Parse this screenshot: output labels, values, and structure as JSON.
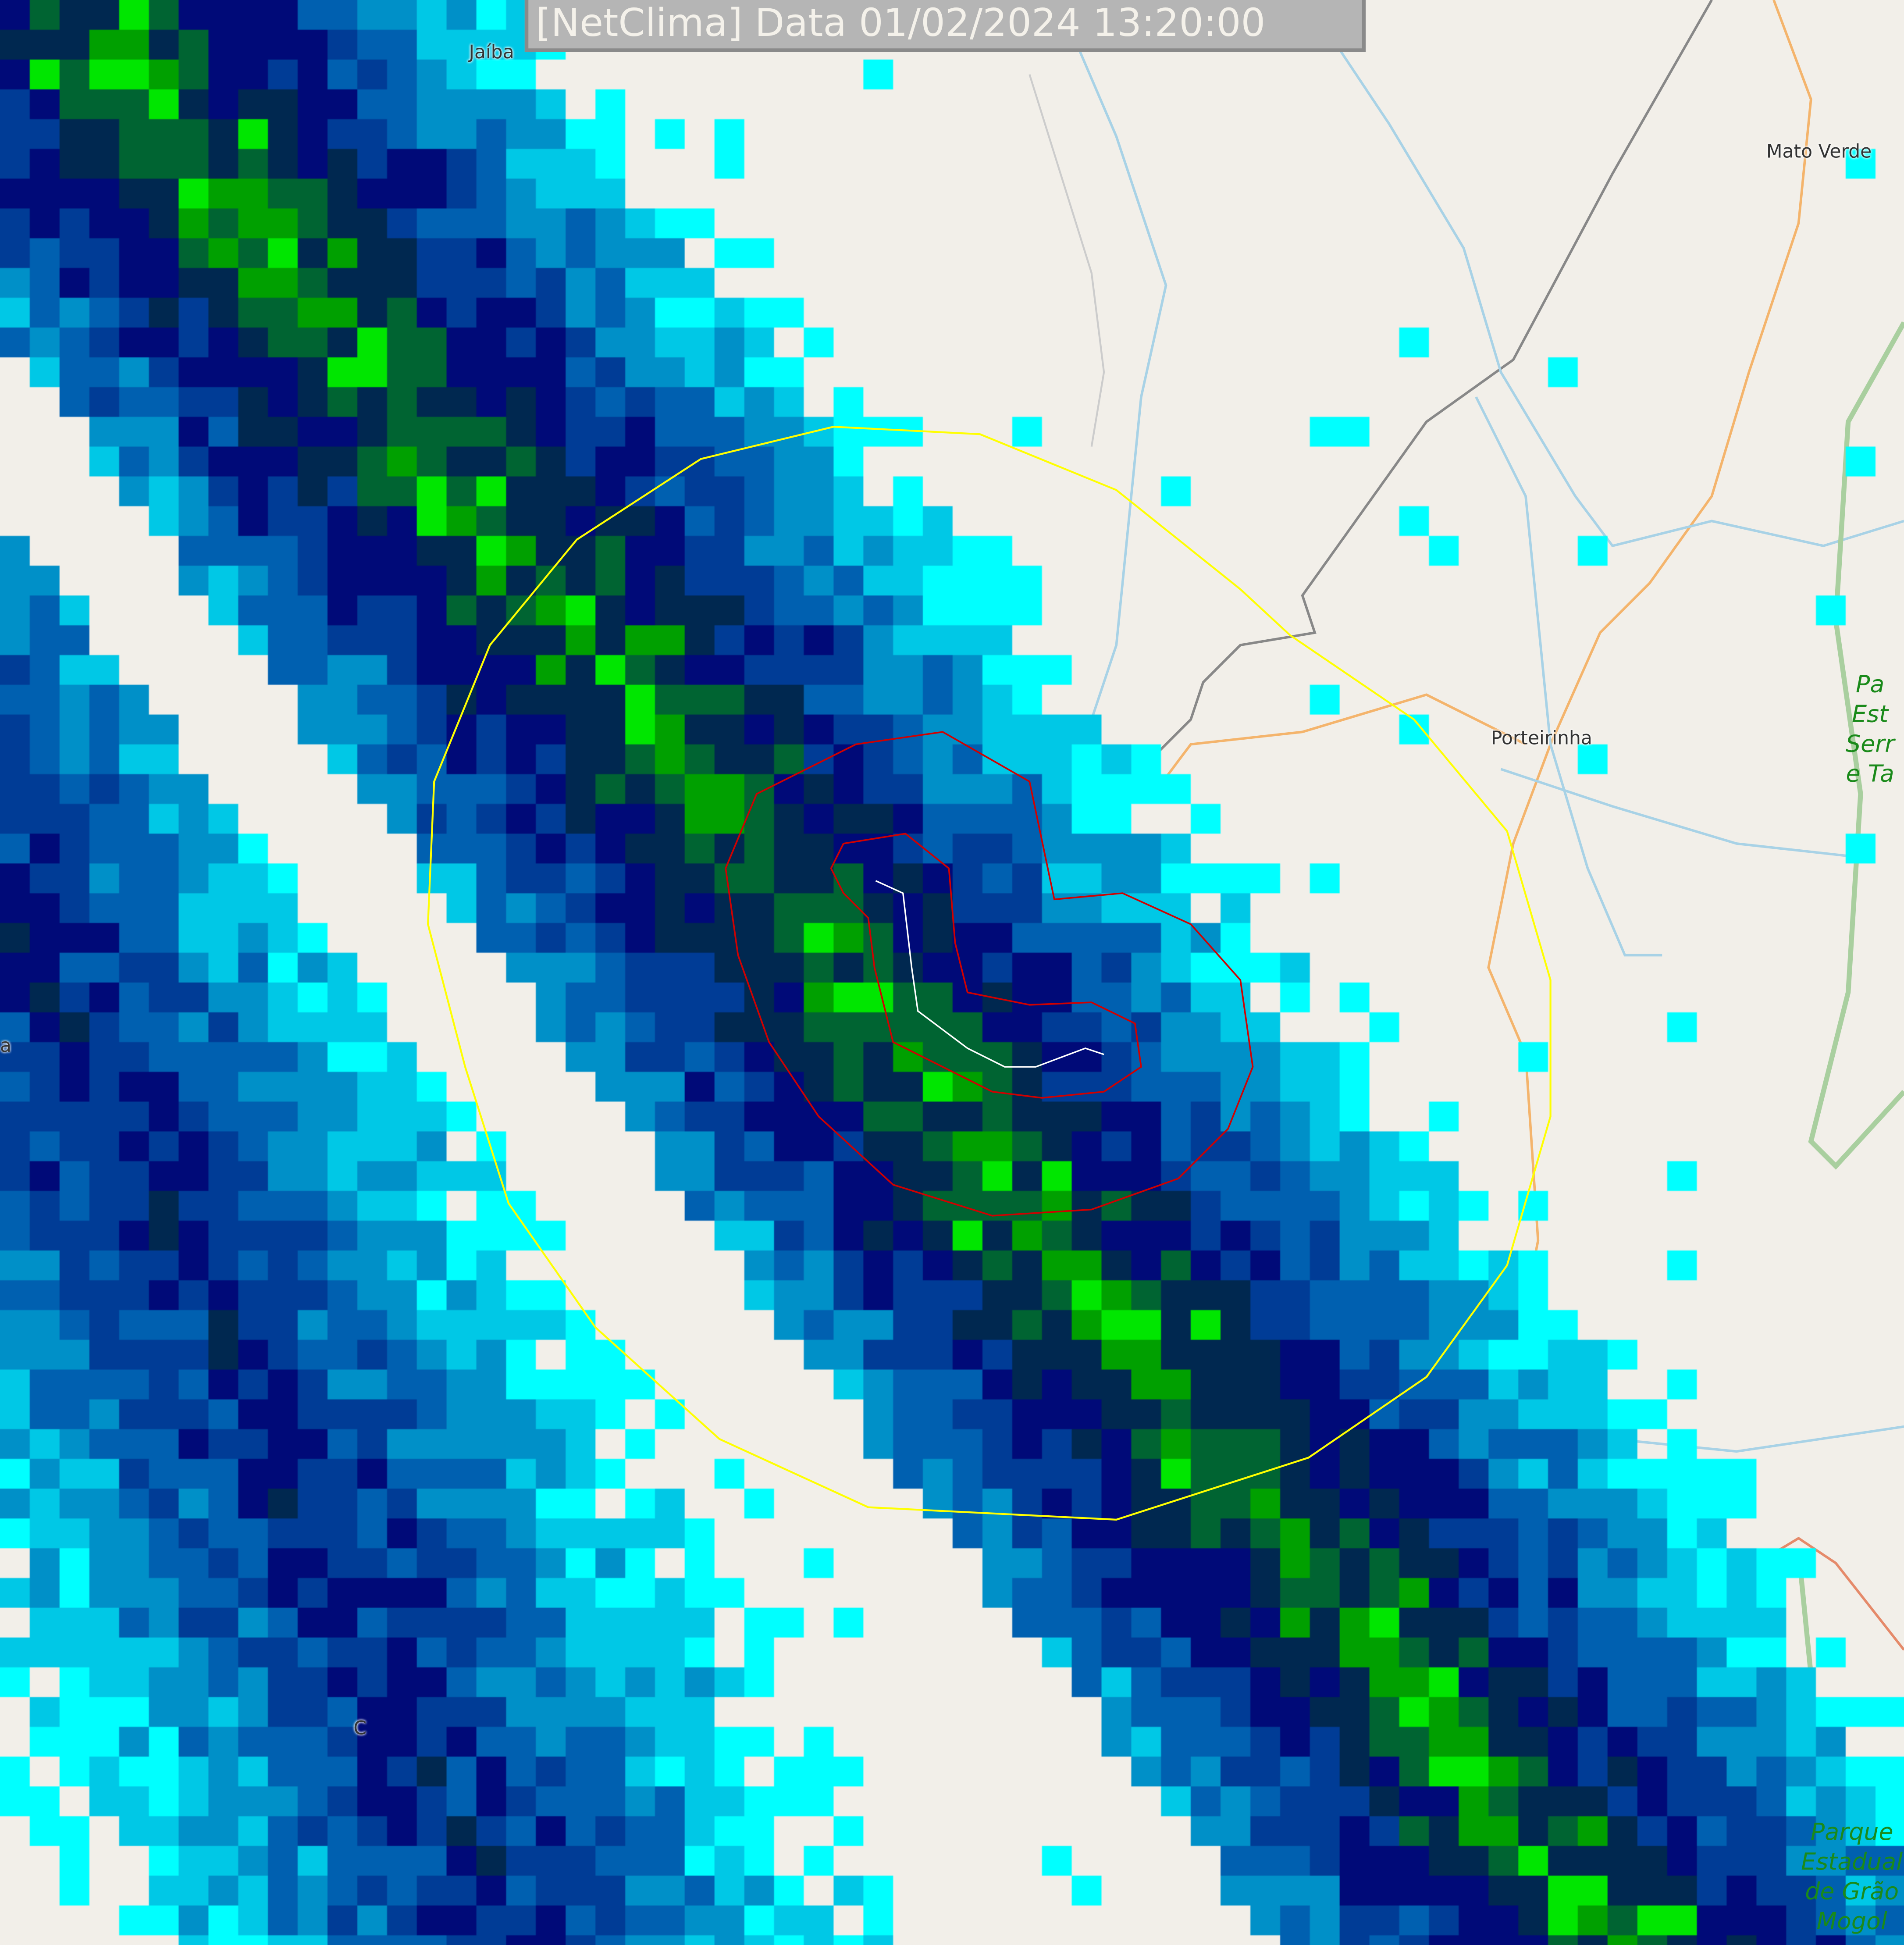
{
  "title": "[NetClima] Data 01/02/2024 13:20:00",
  "places": {
    "jaiba": "Jaíba",
    "mato_verde": "Mato Verde",
    "porteirinha": "Porteirinha",
    "left_edge": "a",
    "bottom_left": "C"
  },
  "parks": {
    "serra": [
      "Pa",
      "Est",
      "Serr",
      "e Ta"
    ],
    "grao_mogol": [
      "Parque",
      "Estadual",
      "de Grão",
      "Mogol"
    ]
  },
  "colors": {
    "radar_range_ring": "#ffff00",
    "contour": "#d00000",
    "track": "#ffffff",
    "park_text": "#1a8a1a",
    "reflectivity_scale": [
      "#f5f5f5",
      "#00ffff",
      "#00c8e6",
      "#0090c8",
      "#0060b0",
      "#003c96",
      "#000a78",
      "#002850",
      "#006432",
      "#00a000",
      "#00e600"
    ]
  }
}
